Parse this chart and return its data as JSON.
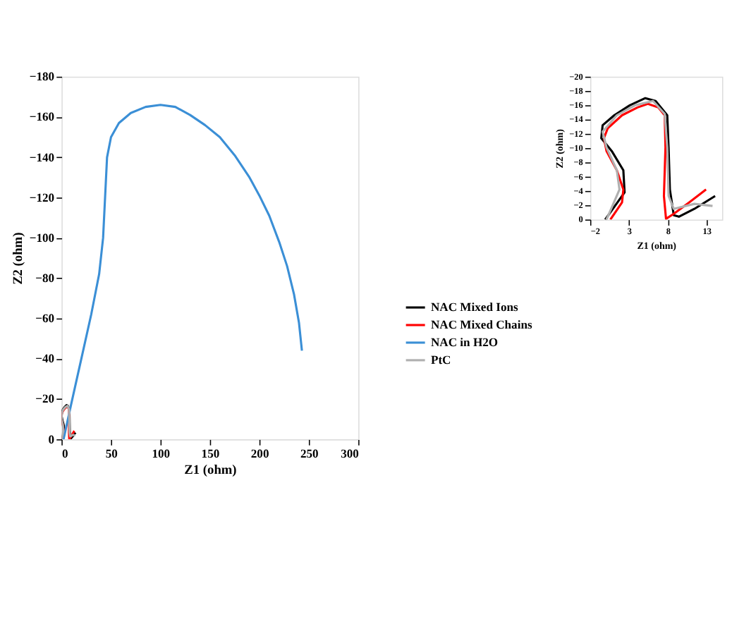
{
  "chart_data": [
    {
      "type": "line",
      "xlabel": "Z1 (ohm)",
      "ylabel": "Z2 (ohm)",
      "xlim": [
        0,
        300
      ],
      "ylim": [
        0,
        -180
      ],
      "xticks": [
        0,
        50,
        100,
        150,
        200,
        250,
        300
      ],
      "yticks": [
        0,
        -20,
        -40,
        -60,
        -80,
        -100,
        -120,
        -140,
        -160,
        -180
      ],
      "grid": false,
      "legend": "right",
      "line_style": "solid",
      "marker": "none",
      "series": [
        {
          "name": "NAC Mixed Ions",
          "color": "#000000",
          "x": [
            0.2,
            2.4,
            2.3,
            0.8,
            0.1,
            0.2,
            1.1,
            3.1,
            5.1,
            6.4,
            7.9,
            8.1,
            8.3,
            8.8,
            9.4,
            11.4,
            14.1
          ],
          "values": [
            0,
            -3.8,
            -6.9,
            -9.6,
            -11.4,
            -13.2,
            -14.6,
            -16.0,
            -17.0,
            -16.6,
            -14.6,
            -10.1,
            -4.2,
            -0.6,
            -0.4,
            -1.5,
            -3.3
          ]
        },
        {
          "name": "NAC Mixed Chains",
          "color": "#ff0000",
          "x": [
            0.6,
            2.1,
            2.3,
            1.4,
            0.1,
            0.1,
            0.3,
            2.1,
            4.1,
            5.4,
            6.8,
            7.6,
            7.7,
            7.5,
            7.8,
            8.8,
            10.8,
            12.9
          ],
          "values": [
            0,
            -2.4,
            -4.2,
            -6.9,
            -9.6,
            -11.4,
            -12.8,
            -14.6,
            -15.7,
            -16.2,
            -15.7,
            -14.6,
            -10.1,
            -3.3,
            -0.1,
            -0.8,
            -2.4,
            -4.2
          ]
        },
        {
          "name": "NAC in H2O",
          "color": "#3b8fd6",
          "x": [
            2,
            10,
            20,
            30,
            38,
            42,
            44,
            46,
            50,
            58,
            70,
            85,
            100,
            115,
            130,
            145,
            160,
            175,
            190,
            200,
            210,
            220,
            228,
            235,
            240,
            243
          ],
          "values": [
            0,
            -18,
            -40,
            -62,
            -82,
            -100,
            -120,
            -140,
            -150,
            -157,
            -162,
            -165,
            -166,
            -165,
            -161,
            -156,
            -150,
            -141,
            -130,
            -121,
            -111,
            -98,
            -86,
            -72,
            -58,
            -44
          ]
        },
        {
          "name": "PtC",
          "color": "#b0b0b0",
          "x": [
            0.1,
            1.8,
            1.4,
            0.1,
            0.1,
            1.4,
            3.8,
            6.1,
            7.6,
            7.9,
            8.1,
            8.8,
            11.4,
            13.8
          ],
          "values": [
            0,
            -4.2,
            -6.9,
            -10.1,
            -12.3,
            -14.6,
            -16.0,
            -16.6,
            -14.8,
            -10.1,
            -3.3,
            -1.5,
            -2.2,
            -1.9
          ]
        }
      ]
    },
    {
      "type": "line",
      "xlabel": "Z1 (ohm)",
      "ylabel": "Z2 (ohm)",
      "xlim": [
        -2,
        15
      ],
      "ylim": [
        0,
        -20
      ],
      "xticks": [
        -2,
        3,
        8,
        13
      ],
      "yticks": [
        0,
        -2,
        -4,
        -6,
        -8,
        -10,
        -12,
        -14,
        -16,
        -18,
        -20
      ],
      "grid": false,
      "legend": false,
      "line_style": "solid",
      "marker": "none",
      "series": [
        {
          "color": "#000000",
          "x": [
            -0.07,
            2.43,
            2.27,
            0.77,
            -0.57,
            -0.4,
            1.1,
            3.1,
            5.1,
            6.43,
            7.93,
            8.1,
            8.27,
            8.77,
            9.43,
            11.43,
            14.1
          ],
          "values": [
            0,
            -3.8,
            -6.9,
            -9.6,
            -11.4,
            -13.2,
            -14.6,
            -16.0,
            -17.0,
            -16.6,
            -14.6,
            -10.1,
            -4.2,
            -0.6,
            -0.4,
            -1.5,
            -3.3
          ]
        },
        {
          "color": "#ff0000",
          "x": [
            0.6,
            2.1,
            2.27,
            1.43,
            0.1,
            -0.23,
            0.27,
            2.1,
            4.1,
            5.43,
            6.77,
            7.6,
            7.7,
            7.5,
            7.77,
            8.77,
            10.77,
            12.93
          ],
          "values": [
            0,
            -2.4,
            -4.2,
            -6.9,
            -9.6,
            -11.4,
            -12.8,
            -14.6,
            -15.7,
            -16.2,
            -15.7,
            -14.6,
            -10.1,
            -3.3,
            -0.1,
            -0.8,
            -2.4,
            -4.2
          ]
        },
        {
          "color": "#b0b0b0",
          "x": [
            0.1,
            1.77,
            1.43,
            0.1,
            -0.4,
            1.43,
            3.77,
            6.1,
            7.6,
            7.93,
            8.1,
            8.77,
            11.43,
            13.77
          ],
          "values": [
            0,
            -4.2,
            -6.9,
            -10.1,
            -12.3,
            -14.6,
            -16.0,
            -16.6,
            -14.8,
            -10.1,
            -3.3,
            -1.5,
            -2.2,
            -1.9
          ]
        }
      ]
    }
  ]
}
